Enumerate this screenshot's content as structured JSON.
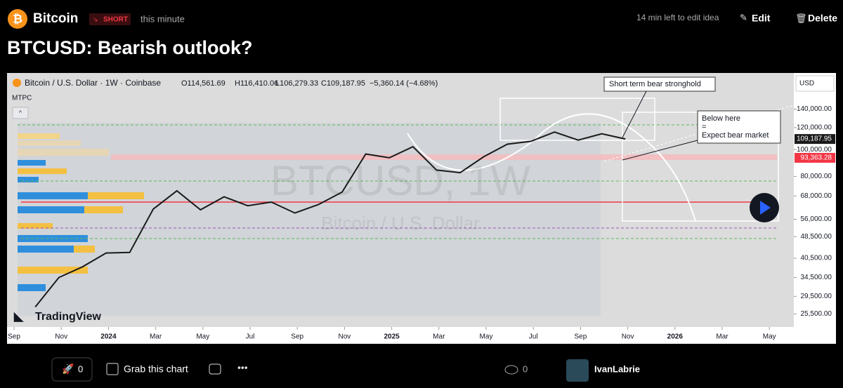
{
  "header": {
    "symbol": "Bitcoin",
    "direction": "SHORT",
    "time": "this minute",
    "edit_note": "14 min left to edit idea",
    "edit": "Edit",
    "delete": "Delete"
  },
  "title": "BTCUSD: Bearish outlook?",
  "chart_legend": {
    "symbol": "Bitcoin / U.S. Dollar · 1W · Coinbase",
    "open": "O114,561.69",
    "high": "H116,410.06",
    "low": "L106,279.33",
    "close": "C109,187.95",
    "change": "−5,360.14 (−4.68%)",
    "indicator": "MTPC",
    "currency": "USD",
    "watermark": "BTCUSD, 1W",
    "watermark_sub": "Bitcoin / U.S. Dollar",
    "brand": "TradingView"
  },
  "annotations": {
    "stronghold": "Short term bear stronghold",
    "below": [
      "Below here",
      "=",
      "Expect bear market"
    ]
  },
  "chart_data": {
    "type": "line",
    "log_scale": true,
    "color": "#1a1a1a",
    "x": [
      "2023-09",
      "2023-10",
      "2023-11",
      "2023-12",
      "2024-01",
      "2024-02",
      "2024-03",
      "2024-04",
      "2024-05",
      "2024-06",
      "2024-07",
      "2024-08",
      "2024-09",
      "2024-10",
      "2024-11",
      "2024-12",
      "2025-01",
      "2025-02",
      "2025-03",
      "2025-04",
      "2025-05",
      "2025-06",
      "2025-07",
      "2025-08",
      "2025-09",
      "2025-10"
    ],
    "values": [
      27000,
      34500,
      37700,
      42300,
      42500,
      61000,
      71000,
      60600,
      67500,
      62700,
      64600,
      59000,
      63300,
      70200,
      96400,
      93400,
      102400,
      84300,
      82500,
      94200,
      104600,
      107100,
      115700,
      108200,
      114000,
      109187.95
    ],
    "ylim": [
      23000,
      188000
    ],
    "yticks": [
      {
        "value": 140000,
        "label": "140,000.00"
      },
      {
        "value": 120000,
        "label": "120,000.00"
      },
      {
        "value": 100000,
        "label": "100,000.00"
      },
      {
        "value": 80000,
        "label": "80,000.00"
      },
      {
        "value": 68000,
        "label": "68,000.00"
      },
      {
        "value": 56000,
        "label": "56,000.00"
      },
      {
        "value": 48500,
        "label": "48,500.00"
      },
      {
        "value": 40500,
        "label": "40,500.00"
      },
      {
        "value": 34500,
        "label": "34,500.00"
      },
      {
        "value": 29500,
        "label": "29,500.00"
      },
      {
        "value": 25500,
        "label": "25,500.00"
      }
    ],
    "xticks": [
      {
        "value": "2023-09",
        "label": "Sep"
      },
      {
        "value": "2023-11",
        "label": "Nov"
      },
      {
        "value": "2024-01",
        "label": "2024"
      },
      {
        "value": "2024-03",
        "label": "Mar"
      },
      {
        "value": "2024-05",
        "label": "May"
      },
      {
        "value": "2024-07",
        "label": "Jul"
      },
      {
        "value": "2024-09",
        "label": "Sep"
      },
      {
        "value": "2024-11",
        "label": "Nov"
      },
      {
        "value": "2025-01",
        "label": "2025"
      },
      {
        "value": "2025-03",
        "label": "Mar"
      },
      {
        "value": "2025-05",
        "label": "May"
      },
      {
        "value": "2025-07",
        "label": "Jul"
      },
      {
        "value": "2025-09",
        "label": "Sep"
      },
      {
        "value": "2025-11",
        "label": "Nov"
      },
      {
        "value": "2026-01",
        "label": "2026"
      },
      {
        "value": "2026-03",
        "label": "Mar"
      },
      {
        "value": "2026-05",
        "label": "May"
      }
    ],
    "price_labels": [
      {
        "value": 109187.95,
        "label": "109,187.95",
        "color": "#1a1a1a"
      },
      {
        "value": 93363.28,
        "label": "93,363.28",
        "color": "#f23645"
      }
    ]
  },
  "footer": {
    "boosts": "0",
    "grab": "Grab this chart",
    "views": "0",
    "author": "IvanLabrie"
  }
}
